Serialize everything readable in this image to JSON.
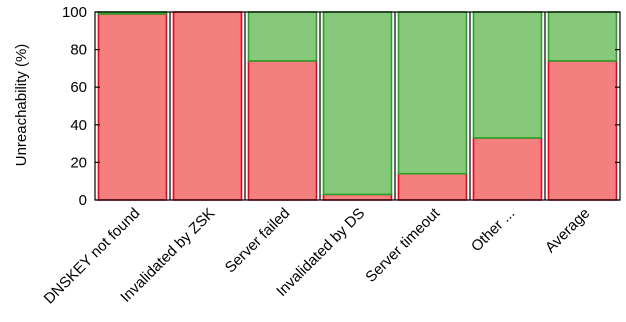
{
  "chart_data": {
    "type": "bar",
    "stacked": true,
    "title": "",
    "xlabel": "",
    "ylabel": "Unreachability (%)",
    "ylim": [
      0,
      100
    ],
    "yticks": [
      0,
      20,
      40,
      60,
      80,
      100
    ],
    "grid": false,
    "legend": "none",
    "categories": [
      "DNSKEY not found",
      "Invalidated by ZSK",
      "Server failed",
      "Invalidated by DS",
      "Server timeout",
      "Other ...",
      "Average"
    ],
    "series": [
      {
        "color": "#f47f7f",
        "edge": "#e8001c",
        "values": [
          99,
          100,
          74,
          3,
          14,
          33,
          74
        ]
      },
      {
        "color": "#86c97a",
        "edge": "#27a227",
        "values": [
          1,
          0,
          26,
          97,
          86,
          67,
          26
        ]
      }
    ]
  }
}
